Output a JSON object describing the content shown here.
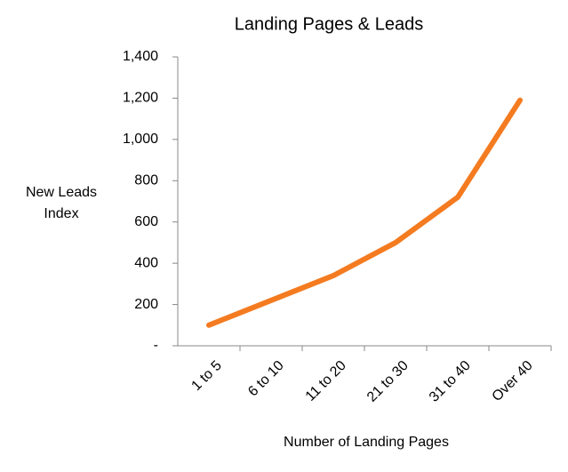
{
  "chart_data": {
    "type": "line",
    "title": "Landing Pages & Leads",
    "x_label": "Number of Landing Pages",
    "y_label": "New Leads Index",
    "categories": [
      "1 to 5",
      "6 to 10",
      "11 to 20",
      "21 to 30",
      "31 to 40",
      "Over 40"
    ],
    "series": [
      {
        "name": "New Leads Index",
        "color": "#f47b20",
        "values": [
          100,
          220,
          340,
          500,
          720,
          1190
        ]
      }
    ],
    "ylim": [
      0,
      1400
    ],
    "yticks": [
      {
        "value": 0,
        "label": "-"
      },
      200,
      400,
      600,
      800,
      {
        "value": 1000,
        "label": "1,000"
      },
      {
        "value": 1200,
        "label": "1,200"
      },
      {
        "value": 1400,
        "label": "1,400"
      }
    ],
    "grid": false,
    "legend": false
  }
}
